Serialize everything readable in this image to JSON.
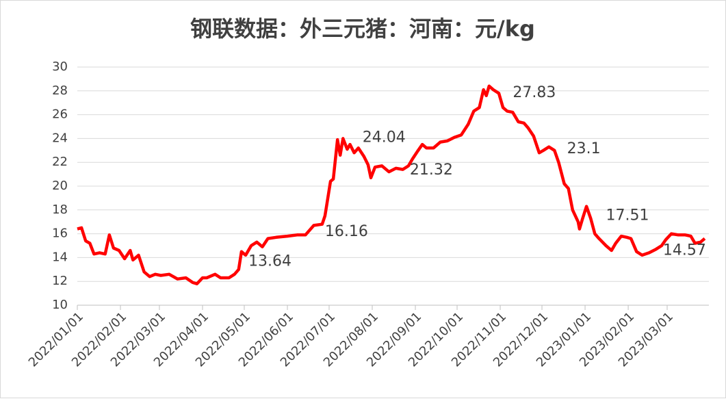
{
  "chart_data": {
    "type": "line",
    "title": "钢联数据：外三元猪：河南：元/kg",
    "x": [
      "2022/01/01",
      "2022/01/04",
      "2022/01/07",
      "2022/01/10",
      "2022/01/13",
      "2022/01/17",
      "2022/01/21",
      "2022/01/24",
      "2022/01/27",
      "2022/01/31",
      "2022/02/04",
      "2022/02/08",
      "2022/02/10",
      "2022/02/14",
      "2022/02/18",
      "2022/02/22",
      "2022/02/26",
      "2022/03/02",
      "2022/03/08",
      "2022/03/14",
      "2022/03/20",
      "2022/03/25",
      "2022/03/28",
      "2022/04/01",
      "2022/04/04",
      "2022/04/10",
      "2022/04/14",
      "2022/04/20",
      "2022/04/24",
      "2022/04/27",
      "2022/04/29",
      "2022/05/02",
      "2022/05/06",
      "2022/05/10",
      "2022/05/14",
      "2022/05/18",
      "2022/05/24",
      "2022/06/01",
      "2022/06/08",
      "2022/06/14",
      "2022/06/20",
      "2022/06/26",
      "2022/06/28",
      "2022/06/29",
      "2022/07/02",
      "2022/07/04",
      "2022/07/07",
      "2022/07/09",
      "2022/07/11",
      "2022/07/14",
      "2022/07/16",
      "2022/07/19",
      "2022/07/22",
      "2022/07/26",
      "2022/07/29",
      "2022/07/31",
      "2022/08/03",
      "2022/08/08",
      "2022/08/13",
      "2022/08/18",
      "2022/08/23",
      "2022/08/27",
      "2022/08/30",
      "2022/09/03",
      "2022/09/06",
      "2022/09/09",
      "2022/09/14",
      "2022/09/19",
      "2022/09/24",
      "2022/09/29",
      "2022/10/04",
      "2022/10/09",
      "2022/10/13",
      "2022/10/17",
      "2022/10/20",
      "2022/10/22",
      "2022/10/24",
      "2022/10/27",
      "2022/10/31",
      "2022/11/03",
      "2022/11/06",
      "2022/11/10",
      "2022/11/14",
      "2022/11/18",
      "2022/11/21",
      "2022/11/25",
      "2022/11/29",
      "2022/12/02",
      "2022/12/06",
      "2022/12/10",
      "2022/12/13",
      "2022/12/17",
      "2022/12/20",
      "2022/12/23",
      "2022/12/27",
      "2022/12/28",
      "2022/12/30",
      "2023/01/02",
      "2023/01/05",
      "2023/01/08",
      "2023/01/11",
      "2023/01/16",
      "2023/01/20",
      "2023/01/23",
      "2023/01/27",
      "2023/01/31",
      "2023/02/03",
      "2023/02/07",
      "2023/02/11",
      "2023/02/16",
      "2023/02/21",
      "2023/02/25",
      "2023/02/28",
      "2023/03/04",
      "2023/03/09",
      "2023/03/14",
      "2023/03/18",
      "2023/03/21",
      "2023/03/25",
      "2023/03/28"
    ],
    "series": [
      {
        "name": "外三元猪：河南",
        "color": "#ff0000",
        "values": [
          16.4,
          16.5,
          15.4,
          15.2,
          14.3,
          14.4,
          14.3,
          15.9,
          14.8,
          14.6,
          13.9,
          14.6,
          13.8,
          14.2,
          12.8,
          12.4,
          12.6,
          12.5,
          12.6,
          12.2,
          12.3,
          11.9,
          11.8,
          12.3,
          12.3,
          12.6,
          12.3,
          12.3,
          12.6,
          13.0,
          14.5,
          14.2,
          15.0,
          15.3,
          14.9,
          15.6,
          15.7,
          15.8,
          15.9,
          15.9,
          16.7,
          16.8,
          17.5,
          18.2,
          20.4,
          20.6,
          23.9,
          22.6,
          24.0,
          23.1,
          23.5,
          22.8,
          23.2,
          22.5,
          21.8,
          20.7,
          21.6,
          21.7,
          21.2,
          21.5,
          21.4,
          21.7,
          22.3,
          23.0,
          23.5,
          23.2,
          23.2,
          23.7,
          23.8,
          24.1,
          24.3,
          25.2,
          26.3,
          26.6,
          28.1,
          27.6,
          28.4,
          28.1,
          27.8,
          26.6,
          26.3,
          26.2,
          25.4,
          25.3,
          24.9,
          24.2,
          22.8,
          23.0,
          23.3,
          23.0,
          22.0,
          20.2,
          19.8,
          18.0,
          17.0,
          16.4,
          17.2,
          18.3,
          17.3,
          16.0,
          15.6,
          15.0,
          14.6,
          15.2,
          15.8,
          15.7,
          15.6,
          14.5,
          14.2,
          14.4,
          14.7,
          15.0,
          15.5,
          16.0,
          15.9,
          15.9,
          15.8,
          15.2,
          15.3,
          15.6
        ]
      }
    ],
    "annotations": [
      {
        "x": "2022/05/04",
        "value": 13.64
      },
      {
        "x": "2022/06/28",
        "value": 16.16
      },
      {
        "x": "2022/07/25",
        "value": 24.04
      },
      {
        "x": "2022/08/28",
        "value": 21.32
      },
      {
        "x": "2022/11/10",
        "value": 27.83
      },
      {
        "x": "2022/12/19",
        "value": 23.1
      },
      {
        "x": "2023/01/16",
        "value": 17.51
      },
      {
        "x": "2023/02/26",
        "value": 14.57
      }
    ],
    "xlim": [
      "2022/01/01",
      "2023/03/31"
    ],
    "xticks": [
      "2022/01/01",
      "2022/02/01",
      "2022/03/01",
      "2022/04/01",
      "2022/05/01",
      "2022/06/01",
      "2022/07/01",
      "2022/08/01",
      "2022/09/01",
      "2022/10/01",
      "2022/11/01",
      "2022/12/01",
      "2023/01/01",
      "2023/02/01",
      "2023/03/01"
    ],
    "ylim": [
      10,
      30
    ],
    "yticks": [
      10,
      12,
      14,
      16,
      18,
      20,
      22,
      24,
      26,
      28,
      30
    ],
    "grid": true
  }
}
